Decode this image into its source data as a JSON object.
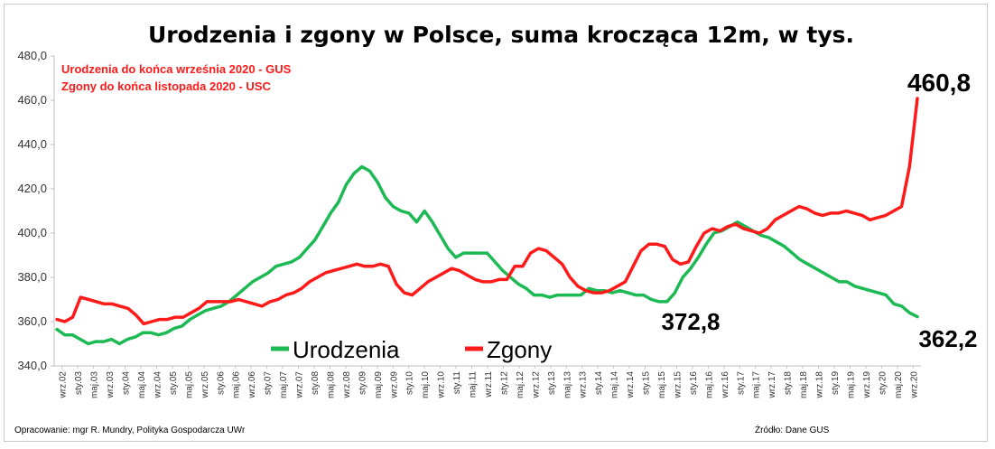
{
  "chart_data": {
    "type": "line",
    "title": "Urodzenia i zgony w Polsce, suma krocząca 12m, w tys.",
    "notes": [
      "Urodzenia do końca września 2020 - GUS",
      "Zgony do końca listopada 2020 - USC"
    ],
    "source_left": "Opracowanie: mgr R. Mundry, Polityka Gospodarcza UWr",
    "source_right": "Źródło: Dane GUS",
    "ylim": [
      340,
      480
    ],
    "yticks": [
      "340,0",
      "360,0",
      "380,0",
      "400,0",
      "420,0",
      "440,0",
      "460,0",
      "480,0"
    ],
    "xticks": [
      "wrz.02",
      "sty.03",
      "maj.03",
      "wrz.03",
      "sty.04",
      "maj.04",
      "wrz.04",
      "sty.05",
      "maj.05",
      "wrz.05",
      "sty.06",
      "maj.06",
      "wrz.06",
      "sty.07",
      "maj.07",
      "wrz.07",
      "sty.08",
      "maj.08",
      "wrz.08",
      "sty.09",
      "maj.09",
      "wrz.09",
      "sty.10",
      "maj.10",
      "wrz.10",
      "sty.11",
      "maj.11",
      "wrz.11",
      "sty.12",
      "maj.12",
      "wrz.12",
      "sty.13",
      "maj.13",
      "wrz.13",
      "sty.14",
      "maj.14",
      "wrz.14",
      "sty.15",
      "maj.15",
      "wrz.15",
      "sty.16",
      "maj.16",
      "wrz.16",
      "sty.17",
      "maj.17",
      "wrz.17",
      "sty.18",
      "maj.18",
      "wrz.18",
      "sty.19",
      "maj.19",
      "wrz.19",
      "sty.20",
      "maj.20",
      "wrz.20"
    ],
    "legend": [
      "Urodzenia",
      "Zgony"
    ],
    "annotations": {
      "max_zgony": "460,8",
      "urodzenia_2015": "372,8",
      "urodzenia_last": "362,2"
    },
    "series": [
      {
        "name": "Urodzenia",
        "color": "#1db954",
        "values": [
          356.5,
          354,
          354,
          352,
          350,
          351,
          351,
          352,
          350,
          352,
          353,
          355,
          355,
          354,
          355,
          357,
          358,
          361,
          363,
          365,
          366,
          367,
          369,
          372,
          375,
          378,
          380,
          382,
          385,
          386,
          387,
          389,
          393,
          397,
          403,
          409,
          414,
          422,
          427,
          430,
          428,
          423,
          416,
          412,
          410,
          409,
          405,
          410,
          405,
          399,
          393,
          389,
          391,
          391,
          391,
          391,
          387,
          383,
          380,
          377,
          375,
          372,
          372,
          371,
          372,
          372,
          372,
          372,
          375,
          374,
          374,
          373,
          374,
          373,
          372,
          372,
          370,
          369,
          369,
          373,
          380,
          384,
          389,
          395,
          400,
          401,
          403,
          405,
          403,
          401,
          399,
          398,
          396,
          394,
          391,
          388,
          386,
          384,
          382,
          380,
          378,
          378,
          376,
          375,
          374,
          373,
          372,
          368,
          367,
          364,
          362.2
        ]
      },
      {
        "name": "Zgony",
        "color": "#ff1a1a",
        "values": [
          361,
          360,
          362,
          371,
          370,
          369,
          368,
          368,
          367,
          366,
          363,
          359,
          360,
          361,
          361,
          362,
          362,
          364,
          366,
          369,
          369,
          369,
          369,
          370,
          369,
          368,
          367,
          369,
          370,
          372,
          373,
          375,
          378,
          380,
          382,
          383,
          384,
          385,
          386,
          385,
          385,
          386,
          385,
          377,
          373,
          372,
          375,
          378,
          380,
          382,
          384,
          383,
          381,
          379,
          378,
          378,
          379,
          379,
          385,
          385,
          391,
          393,
          392,
          389,
          386,
          380,
          376,
          374,
          373,
          373,
          374,
          376,
          378,
          385,
          392,
          395,
          395,
          394,
          388,
          386,
          387,
          394,
          400,
          402,
          401,
          403,
          404,
          402,
          401,
          400,
          402,
          406,
          408,
          410,
          412,
          411,
          409,
          408,
          409,
          409,
          410,
          409,
          408,
          406,
          407,
          408,
          410,
          412,
          430,
          460.8
        ]
      }
    ]
  }
}
